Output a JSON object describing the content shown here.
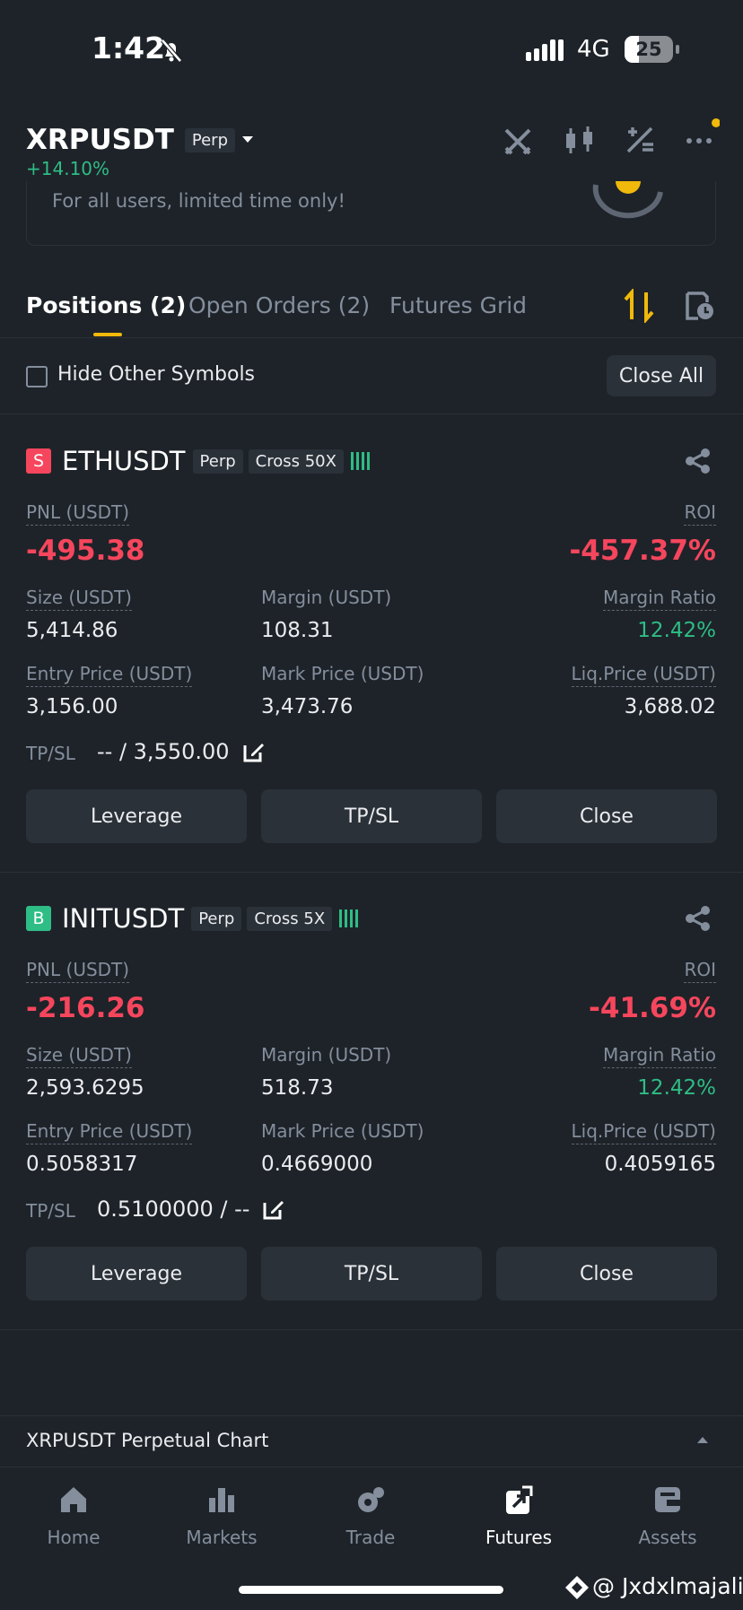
{
  "status_bar": {
    "time": "1:42",
    "network": "4G",
    "battery": "25"
  },
  "header": {
    "symbol": "XRPUSDT",
    "badge": "Perp",
    "change": "+14.10%"
  },
  "banner": {
    "text": "For all users, limited time only!"
  },
  "tabs": [
    "Positions (2)",
    "Open Orders (2)",
    "Futures Grid"
  ],
  "filter": {
    "label": "Hide Other Symbols",
    "button": "Close All"
  },
  "positions": [
    {
      "side": "S",
      "symbol": "ETHUSDT",
      "type": "Perp",
      "margin_mode": "Cross 50X",
      "pnl_label": "PNL (USDT)",
      "pnl": "-495.38",
      "roi_label": "ROI",
      "roi": "-457.37%",
      "fields": [
        {
          "label": "Size (USDT)",
          "value": "5,414.86"
        },
        {
          "label": "Margin (USDT)",
          "value": "108.31"
        },
        {
          "label": "Margin Ratio",
          "value": "12.42%"
        },
        {
          "label": "Entry Price (USDT)",
          "value": "3,156.00"
        },
        {
          "label": "Mark Price (USDT)",
          "value": "3,473.76"
        },
        {
          "label": "Liq.Price (USDT)",
          "value": "3,688.02"
        }
      ],
      "tpsl_label": "TP/SL",
      "tpsl": "-- / 3,550.00",
      "buttons": [
        "Leverage",
        "TP/SL",
        "Close"
      ]
    },
    {
      "side": "B",
      "symbol": "INITUSDT",
      "type": "Perp",
      "margin_mode": "Cross 5X",
      "pnl_label": "PNL (USDT)",
      "pnl": "-216.26",
      "roi_label": "ROI",
      "roi": "-41.69%",
      "fields": [
        {
          "label": "Size (USDT)",
          "value": "2,593.6295"
        },
        {
          "label": "Margin (USDT)",
          "value": "518.73"
        },
        {
          "label": "Margin Ratio",
          "value": "12.42%"
        },
        {
          "label": "Entry Price (USDT)",
          "value": "0.5058317"
        },
        {
          "label": "Mark Price (USDT)",
          "value": "0.4669000"
        },
        {
          "label": "Liq.Price (USDT)",
          "value": "0.4059165"
        }
      ],
      "tpsl_label": "TP/SL",
      "tpsl": "0.5100000 / --",
      "buttons": [
        "Leverage",
        "TP/SL",
        "Close"
      ]
    }
  ],
  "chart_bar": {
    "text": "XRPUSDT Perpetual  Chart"
  },
  "nav": [
    "Home",
    "Markets",
    "Trade",
    "Futures",
    "Assets"
  ],
  "watermark": "@ Jxdxlmajali"
}
